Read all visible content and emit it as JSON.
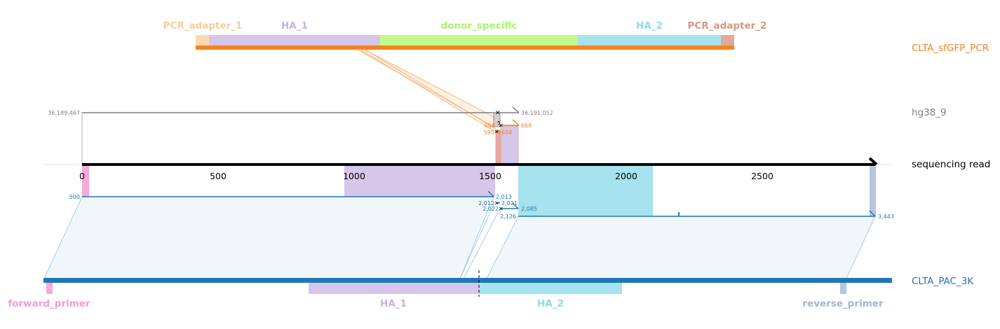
{
  "tracks": {
    "pcr_label": "CLTA_sfGFP_PCR",
    "genome_label": "hg38_9",
    "read_label": "sequencing read",
    "ref_label": "CLTA_PAC_3K"
  },
  "colors": {
    "pcr": "#f5821f",
    "genome": "#7f7f7f",
    "read_align": "#1f77b4",
    "ref": "#1f77b4",
    "pcr_adapter_1": "#fdd9b0",
    "ha_1": "#d6c6ea",
    "donor_specific": "#c3f98a",
    "ha_2": "#a6e3ee",
    "pcr_adapter_2": "#e2a995",
    "forward_primer": "#f8a8dc",
    "reverse_primer": "#b8c4e0"
  },
  "top_features": [
    {
      "name": "PCR_adapter_1",
      "color": "#f6cd98"
    },
    {
      "name": "HA_1",
      "color": "#c6b2e6"
    },
    {
      "name": "donor_specific",
      "color": "#a9f56a"
    },
    {
      "name": "HA_2",
      "color": "#8cdbeb"
    },
    {
      "name": "PCR_adapter_2",
      "color": "#d89580"
    }
  ],
  "bottom_features": [
    {
      "name": "forward_primer",
      "color": "#f59ad6"
    },
    {
      "name": "HA_1",
      "color": "#c6b2e6"
    },
    {
      "name": "HA_2",
      "color": "#8cdbeb"
    },
    {
      "name": "reverse_primer",
      "color": "#a6b2d4"
    }
  ],
  "read_axis": {
    "ticks": [
      "0",
      "500",
      "1000",
      "1500",
      "2000",
      "2500"
    ],
    "tick_values": [
      0,
      500,
      1000,
      1500,
      2000,
      2500
    ]
  },
  "coordinates": {
    "genome_start": "36,189,467",
    "genome_end": "36,191,052",
    "pcr_a": "668",
    "pcr_b": "668",
    "pcr_c": "595",
    "pcr_d": "604",
    "read_start_ref": "500",
    "ref_a": "2,013",
    "ref_b": "2,012",
    "ref_c": "2,021",
    "ref_d": "2,022",
    "ref_e": "2,085",
    "ref_f": "2,126",
    "ref_end": "3,443"
  }
}
